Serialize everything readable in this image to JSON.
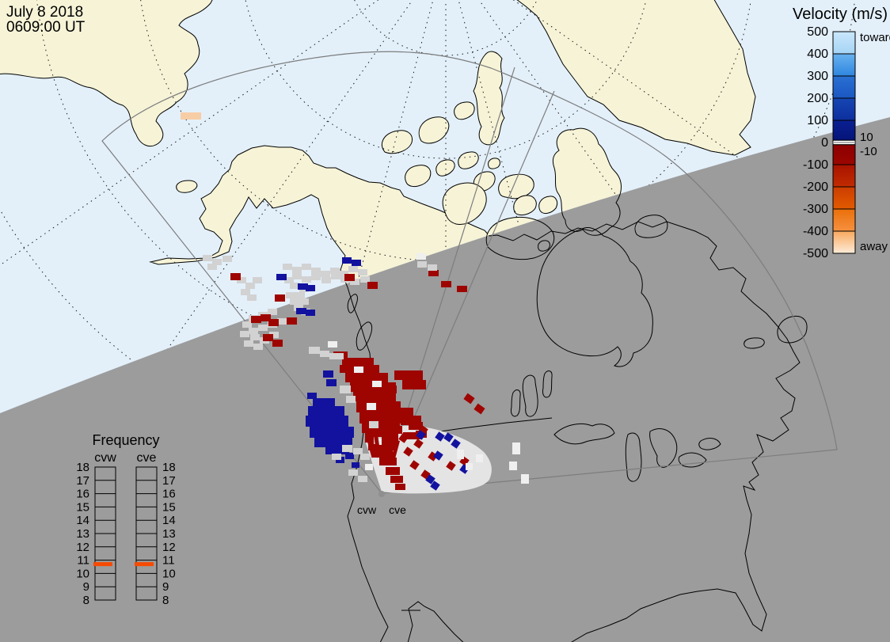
{
  "header": {
    "date_line1": "July 8 2018",
    "date_line2": "0609:00 UT"
  },
  "velocity_legend": {
    "title": "Velocity (m/s)",
    "toward_label": "toward",
    "away_label": "away",
    "pos_small_label": "10",
    "neg_small_label": "-10",
    "ticks": [
      "500",
      "400",
      "300",
      "200",
      "100",
      "0",
      "-100",
      "-200",
      "-300",
      "-400",
      "-500"
    ],
    "segments": [
      {
        "from": 500,
        "to": 400,
        "c1": "#c9e7fb",
        "c2": "#a5d4f5"
      },
      {
        "from": 400,
        "to": 300,
        "c1": "#67b1ee",
        "c2": "#2f86e0"
      },
      {
        "from": 300,
        "to": 200,
        "c1": "#2a70d2",
        "c2": "#1a57c2"
      },
      {
        "from": 200,
        "to": 100,
        "c1": "#1646b2",
        "c2": "#0d2f9e"
      },
      {
        "from": 100,
        "to": 10,
        "c1": "#0a2092",
        "c2": "#041478"
      },
      {
        "from": 10,
        "to": -10,
        "c1": "#ffffff",
        "c2": "#ffffff"
      },
      {
        "from": -10,
        "to": -100,
        "c1": "#8c0000",
        "c2": "#9c0600"
      },
      {
        "from": -100,
        "to": -200,
        "c1": "#a81300",
        "c2": "#c22c00"
      },
      {
        "from": -200,
        "to": -300,
        "c1": "#cc3d00",
        "c2": "#e25b00"
      },
      {
        "from": -300,
        "to": -400,
        "c1": "#ea6f0a",
        "c2": "#f69140"
      },
      {
        "from": -400,
        "to": -500,
        "c1": "#f9a85e",
        "c2": "#fdecd8"
      }
    ]
  },
  "frequency_legend": {
    "title": "Frequency",
    "marker_color": "#f74a00",
    "marker_value": 10.7,
    "scale_min": 8,
    "scale_max": 18,
    "radars": [
      {
        "name": "cvw",
        "ticks": [
          "18",
          "17",
          "16",
          "15",
          "14",
          "13",
          "12",
          "11",
          "10",
          "9",
          "8"
        ]
      },
      {
        "name": "cve",
        "ticks": [
          "18",
          "17",
          "16",
          "15",
          "14",
          "13",
          "12",
          "11",
          "10",
          "9",
          "8"
        ]
      }
    ]
  },
  "map": {
    "radar_site_labels": [
      {
        "text": "cvw"
      },
      {
        "text": "cve"
      }
    ],
    "colors": {
      "day_ocean": "#e3f0fa",
      "day_land": "#f6f3d7",
      "night": "#9c9c9c",
      "coast": "#000000",
      "fan_line": "#7d7d7d",
      "ground_scatter_wedge": "#e4e4e4",
      "cell_r": "#9e0500",
      "cell_b": "#12129f",
      "cell_g": "#d2d2d2",
      "cell_w": "#efefef",
      "cell_p": "#f7cda6"
    }
  },
  "scatter_cells": [
    [
      228,
      142,
      26,
      9,
      "p"
    ],
    [
      256,
      322,
      12,
      8,
      "g"
    ],
    [
      268,
      327,
      12,
      8,
      "g"
    ],
    [
      281,
      323,
      12,
      8,
      "g"
    ],
    [
      262,
      333,
      12,
      8,
      "g"
    ],
    [
      299,
      350,
      12,
      8,
      "g"
    ],
    [
      310,
      357,
      12,
      8,
      "g"
    ],
    [
      319,
      350,
      12,
      8,
      "g"
    ],
    [
      304,
      365,
      12,
      8,
      "g"
    ],
    [
      312,
      372,
      12,
      8,
      "g"
    ],
    [
      357,
      333,
      12,
      8,
      "g"
    ],
    [
      369,
      337,
      12,
      8,
      "g"
    ],
    [
      381,
      333,
      12,
      8,
      "g"
    ],
    [
      393,
      338,
      12,
      8,
      "g"
    ],
    [
      369,
      345,
      12,
      8,
      "g"
    ],
    [
      381,
      349,
      12,
      8,
      "g"
    ],
    [
      393,
      346,
      12,
      8,
      "g"
    ],
    [
      405,
      342,
      12,
      8,
      "g"
    ],
    [
      417,
      338,
      12,
      8,
      "g"
    ],
    [
      428,
      342,
      12,
      8,
      "g"
    ],
    [
      406,
      350,
      12,
      8,
      "g"
    ],
    [
      359,
      350,
      12,
      8,
      "g"
    ],
    [
      366,
      357,
      12,
      8,
      "g"
    ],
    [
      378,
      361,
      12,
      8,
      "g"
    ],
    [
      373,
      369,
      12,
      8,
      "g"
    ],
    [
      361,
      369,
      12,
      8,
      "g"
    ],
    [
      366,
      377,
      12,
      8,
      "g"
    ],
    [
      378,
      377,
      12,
      8,
      "g"
    ],
    [
      371,
      385,
      12,
      8,
      "g"
    ],
    [
      380,
      390,
      12,
      8,
      "g"
    ],
    [
      338,
      390,
      12,
      8,
      "g"
    ],
    [
      326,
      394,
      12,
      8,
      "g"
    ],
    [
      314,
      398,
      12,
      8,
      "g"
    ],
    [
      306,
      406,
      12,
      8,
      "g"
    ],
    [
      314,
      414,
      12,
      8,
      "g"
    ],
    [
      326,
      410,
      12,
      8,
      "g"
    ],
    [
      338,
      406,
      12,
      8,
      "g"
    ],
    [
      350,
      402,
      12,
      8,
      "g"
    ],
    [
      303,
      418,
      12,
      8,
      "g"
    ],
    [
      316,
      422,
      12,
      8,
      "g"
    ],
    [
      328,
      426,
      12,
      8,
      "g"
    ],
    [
      340,
      419,
      12,
      8,
      "g"
    ],
    [
      308,
      430,
      12,
      8,
      "g"
    ],
    [
      320,
      434,
      12,
      8,
      "g"
    ],
    [
      418,
      345,
      12,
      8,
      "g"
    ],
    [
      430,
      349,
      12,
      8,
      "g"
    ],
    [
      442,
      352,
      12,
      8,
      "g"
    ],
    [
      455,
      349,
      12,
      8,
      "g"
    ],
    [
      440,
      336,
      12,
      8,
      "g"
    ],
    [
      452,
      340,
      12,
      8,
      "g"
    ],
    [
      291,
      345,
      13,
      9,
      "r"
    ],
    [
      435,
      346,
      13,
      9,
      "r"
    ],
    [
      464,
      356,
      13,
      9,
      "r"
    ],
    [
      347,
      372,
      13,
      9,
      "r"
    ],
    [
      317,
      399,
      13,
      9,
      "r"
    ],
    [
      329,
      397,
      13,
      9,
      "r"
    ],
    [
      339,
      403,
      13,
      9,
      "r"
    ],
    [
      332,
      422,
      13,
      9,
      "r"
    ],
    [
      344,
      429,
      13,
      9,
      "r"
    ],
    [
      362,
      401,
      13,
      9,
      "r"
    ],
    [
      541,
      341,
      13,
      8,
      "r"
    ],
    [
      557,
      355,
      13,
      8,
      "r"
    ],
    [
      577,
      361,
      13,
      8,
      "r"
    ],
    [
      349,
      346,
      13,
      8,
      "b"
    ],
    [
      376,
      358,
      13,
      8,
      "b"
    ],
    [
      386,
      360,
      12,
      8,
      "b"
    ],
    [
      374,
      389,
      13,
      8,
      "b"
    ],
    [
      386,
      391,
      12,
      8,
      "b"
    ],
    [
      432,
      325,
      12,
      8,
      "b"
    ],
    [
      444,
      328,
      12,
      8,
      "b"
    ],
    [
      527,
      330,
      12,
      8,
      "g"
    ],
    [
      540,
      334,
      12,
      8,
      "g"
    ],
    [
      526,
      320,
      12,
      8,
      "w"
    ],
    [
      390,
      438,
      14,
      9,
      "g"
    ],
    [
      404,
      443,
      12,
      8,
      "g"
    ],
    [
      414,
      431,
      12,
      8,
      "w"
    ],
    [
      421,
      444,
      18,
      9,
      "r"
    ],
    [
      432,
      452,
      40,
      10,
      "r"
    ],
    [
      429,
      461,
      50,
      10,
      "r"
    ],
    [
      436,
      471,
      54,
      12,
      "r"
    ],
    [
      442,
      483,
      58,
      12,
      "r"
    ],
    [
      446,
      495,
      54,
      12,
      "r"
    ],
    [
      450,
      507,
      56,
      14,
      "r"
    ],
    [
      454,
      521,
      52,
      14,
      "r"
    ],
    [
      457,
      535,
      48,
      12,
      "r"
    ],
    [
      461,
      547,
      42,
      12,
      "r"
    ],
    [
      465,
      559,
      36,
      10,
      "r"
    ],
    [
      498,
      468,
      36,
      12,
      "r"
    ],
    [
      508,
      480,
      30,
      12,
      "r"
    ],
    [
      477,
      487,
      24,
      10,
      "r"
    ],
    [
      478,
      515,
      44,
      12,
      "r"
    ],
    [
      506,
      525,
      26,
      12,
      "r"
    ],
    [
      480,
      538,
      28,
      10,
      "r"
    ],
    [
      509,
      546,
      22,
      9,
      "r"
    ],
    [
      470,
      568,
      26,
      10,
      "r"
    ],
    [
      479,
      578,
      22,
      10,
      "r"
    ],
    [
      487,
      590,
      18,
      10,
      "r"
    ],
    [
      493,
      601,
      16,
      9,
      "r"
    ],
    [
      499,
      611,
      13,
      8,
      "r"
    ],
    [
      516,
      533,
      18,
      10,
      "r"
    ],
    [
      525,
      544,
      14,
      9,
      "r"
    ],
    [
      587,
      499,
      11,
      9,
      "r",
      35
    ],
    [
      600,
      512,
      11,
      9,
      "r",
      35
    ],
    [
      388,
      496,
      12,
      8,
      "b"
    ],
    [
      395,
      503,
      28,
      10,
      "b"
    ],
    [
      389,
      513,
      46,
      12,
      "b"
    ],
    [
      386,
      525,
      54,
      14,
      "b"
    ],
    [
      391,
      539,
      56,
      14,
      "b"
    ],
    [
      397,
      553,
      48,
      12,
      "b"
    ],
    [
      411,
      565,
      30,
      9,
      "b"
    ],
    [
      408,
      468,
      13,
      9,
      "b"
    ],
    [
      412,
      479,
      13,
      9,
      "b"
    ],
    [
      424,
      577,
      11,
      8,
      "b"
    ],
    [
      436,
      572,
      11,
      8,
      "b"
    ],
    [
      444,
      584,
      10,
      7,
      "b"
    ],
    [
      416,
      446,
      18,
      8,
      "g"
    ],
    [
      429,
      487,
      14,
      10,
      "g"
    ],
    [
      437,
      500,
      12,
      9,
      "g"
    ],
    [
      466,
      532,
      12,
      9,
      "g"
    ],
    [
      472,
      552,
      12,
      9,
      "g"
    ],
    [
      432,
      562,
      13,
      9,
      "g"
    ],
    [
      446,
      566,
      12,
      8,
      "g"
    ],
    [
      419,
      573,
      12,
      8,
      "g"
    ],
    [
      455,
      573,
      12,
      8,
      "g"
    ],
    [
      440,
      593,
      12,
      8,
      "g"
    ],
    [
      452,
      601,
      12,
      8,
      "g"
    ],
    [
      447,
      463,
      12,
      8,
      "w"
    ],
    [
      470,
      481,
      12,
      8,
      "w"
    ],
    [
      463,
      509,
      12,
      9,
      "w"
    ],
    [
      475,
      554,
      10,
      8,
      "w"
    ],
    [
      461,
      586,
      10,
      8,
      "w"
    ],
    [
      466,
      552,
      6,
      26,
      "r",
      -15
    ],
    [
      474,
      548,
      5,
      30,
      "r",
      -8
    ],
    [
      482,
      546,
      5,
      32,
      "r",
      0
    ],
    [
      490,
      550,
      5,
      28,
      "r",
      8
    ],
    [
      497,
      556,
      5,
      24,
      "r",
      15
    ],
    [
      505,
      549,
      9,
      9,
      "r",
      35
    ],
    [
      511,
      566,
      9,
      9,
      "r",
      35
    ],
    [
      519,
      583,
      9,
      9,
      "r",
      35
    ],
    [
      524,
      556,
      9,
      9,
      "r",
      35
    ],
    [
      530,
      539,
      9,
      9,
      "r",
      35
    ],
    [
      542,
      572,
      9,
      9,
      "r",
      35
    ],
    [
      565,
      584,
      9,
      9,
      "r",
      35
    ],
    [
      582,
      578,
      9,
      9,
      "r",
      35
    ],
    [
      533,
      595,
      9,
      9,
      "r",
      35
    ],
    [
      527,
      545,
      9,
      9,
      "b",
      35
    ],
    [
      551,
      547,
      9,
      9,
      "b",
      35
    ],
    [
      562,
      548,
      9,
      9,
      "b",
      35
    ],
    [
      549,
      571,
      9,
      9,
      "b",
      35
    ],
    [
      539,
      601,
      9,
      9,
      "b",
      35
    ],
    [
      545,
      609,
      9,
      9,
      "b",
      35
    ],
    [
      582,
      588,
      9,
      9,
      "b",
      35
    ],
    [
      571,
      556,
      9,
      9,
      "b",
      35
    ],
    [
      577,
      568,
      9,
      12,
      "w"
    ],
    [
      601,
      574,
      9,
      10,
      "w"
    ],
    [
      647,
      559,
      10,
      15,
      "w"
    ],
    [
      643,
      583,
      10,
      11,
      "w"
    ],
    [
      658,
      599,
      10,
      12,
      "w"
    ],
    [
      588,
      585,
      9,
      9,
      "w"
    ]
  ]
}
